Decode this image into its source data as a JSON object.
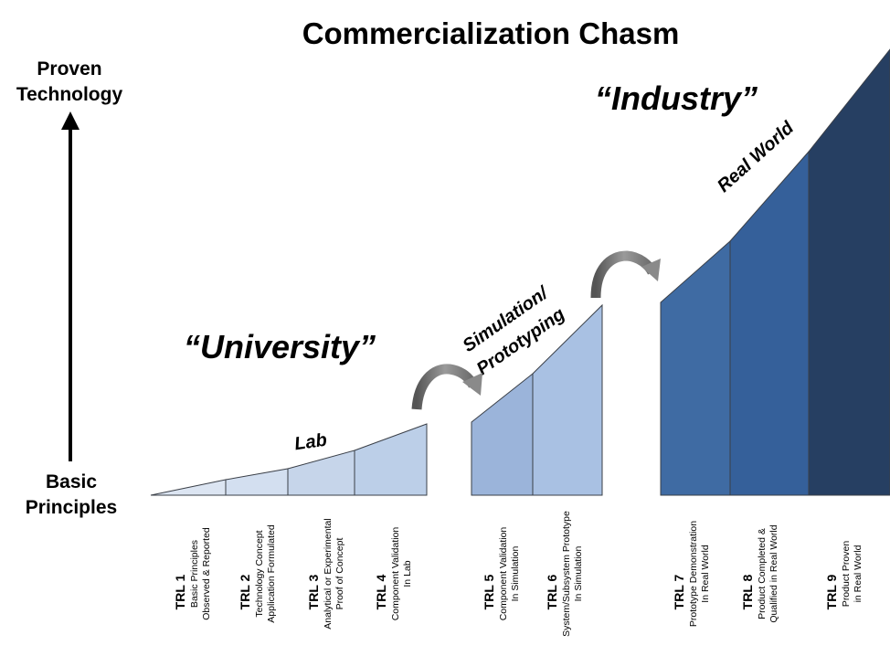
{
  "title": "Commercialization Chasm",
  "axis": {
    "top_line1": "Proven",
    "top_line2": "Technology",
    "bottom_line1": "Basic",
    "bottom_line2": "Principles"
  },
  "zones": {
    "university": "“University”",
    "industry": "“Industry”"
  },
  "phases": {
    "lab": "Lab",
    "simulation_line1": "Simulation/",
    "simulation_line2": "Prototyping",
    "real_world": "Real World"
  },
  "levels": [
    {
      "num": "TRL 1",
      "line1": "Basic Principles",
      "line2": "Observed & Reported",
      "color": "#dce5f2"
    },
    {
      "num": "TRL 2",
      "line1": "Technology Concept",
      "line2": "Application Formulated",
      "color": "#d3dff0"
    },
    {
      "num": "TRL 3",
      "line1": "Analytical or Experimental",
      "line2": "Proof of Concept",
      "color": "#c6d5ea"
    },
    {
      "num": "TRL 4",
      "line1": "Component Validation",
      "line2": "In Lab",
      "color": "#bccfe8"
    },
    {
      "num": "TRL 5",
      "line1": "Component Validation",
      "line2": "In Simulation",
      "color": "#9bb4da"
    },
    {
      "num": "TRL 6",
      "line1": "System/Subsystem Prototype",
      "line2": "In Simulation",
      "color": "#a9c1e3"
    },
    {
      "num": "TRL 7",
      "line1": "Prototype Demonstration",
      "line2": "In Real World",
      "color": "#3f6ba3"
    },
    {
      "num": "TRL 8",
      "line1": "Product Completed &",
      "line2": "Qualified in Real World",
      "color": "#35609a"
    },
    {
      "num": "TRL 9",
      "line1": "Product Proven",
      "line2": "in Real World",
      "color": "#263f62"
    }
  ],
  "colors": {
    "outline": "#3a3f47",
    "arrow": "#7a7a7a",
    "axis_arrow": "#000000"
  }
}
